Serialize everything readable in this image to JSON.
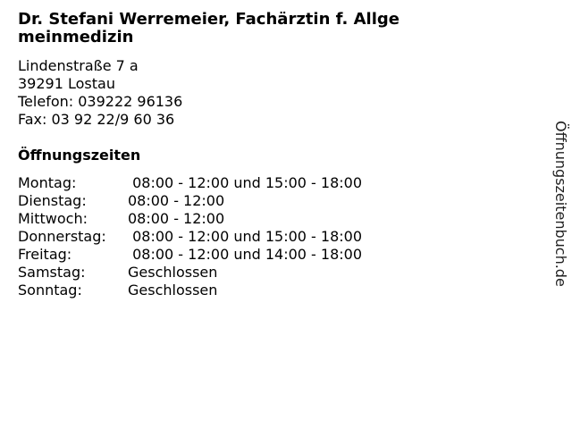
{
  "title": "Dr. Stefani Werremeier, Fachärztin f. Allgemeinmedizin",
  "address": {
    "street": "Lindenstraße 7 a",
    "city": "39291 Lostau",
    "phone": "Telefon: 039222 96136",
    "fax": "Fax: 03 92 22/9 60 36"
  },
  "hours_title": "Öffnungszeiten",
  "hours": [
    {
      "day": "Montag:",
      "time": " 08:00 - 12:00 und 15:00 - 18:00"
    },
    {
      "day": "Dienstag:",
      "time": "08:00 - 12:00"
    },
    {
      "day": "Mittwoch:",
      "time": "08:00 - 12:00"
    },
    {
      "day": "Donnerstag:",
      "time": " 08:00 - 12:00 und 15:00 - 18:00"
    },
    {
      "day": "Freitag:",
      "time": " 08:00 - 12:00 und 14:00 - 18:00"
    },
    {
      "day": "Samstag:",
      "time": "Geschlossen"
    },
    {
      "day": "Sonntag:",
      "time": "Geschlossen"
    }
  ],
  "watermark": "Öffnungszeitenbuch.de"
}
